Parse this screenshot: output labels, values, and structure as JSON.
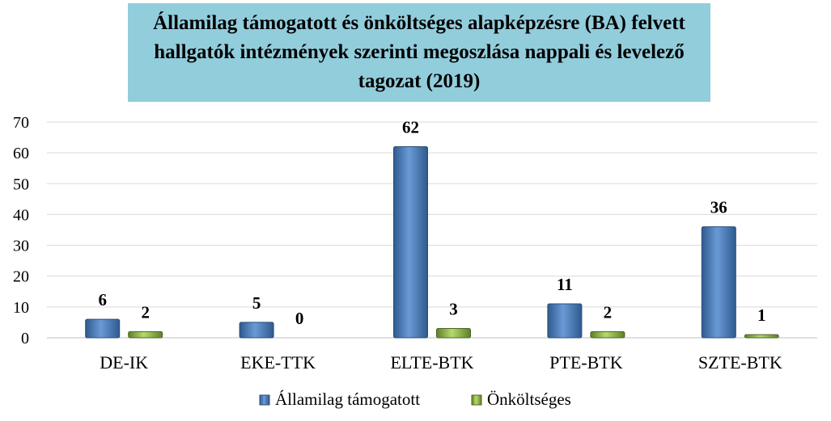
{
  "chart_data": {
    "type": "bar",
    "title": "Államilag támogatott és önköltséges alapképzésre (BA) felvett hallgatók intézmények szerinti megoszlása nappali és levelező tagozat (2019)",
    "categories": [
      "DE-IK",
      "EKE-TTK",
      "ELTE-BTK",
      "PTE-BTK",
      "SZTE-BTK"
    ],
    "series": [
      {
        "name": "Államilag támogatott",
        "values": [
          6,
          5,
          62,
          11,
          36
        ],
        "color": "#4F81BD"
      },
      {
        "name": "Önköltséges",
        "values": [
          2,
          0,
          3,
          2,
          1
        ],
        "color": "#9BBB59"
      }
    ],
    "ylim": [
      0,
      70
    ],
    "yticks": [
      0,
      10,
      20,
      30,
      40,
      50,
      60,
      70
    ],
    "grid": true,
    "legend": "bottom",
    "xlabel": "",
    "ylabel": ""
  }
}
